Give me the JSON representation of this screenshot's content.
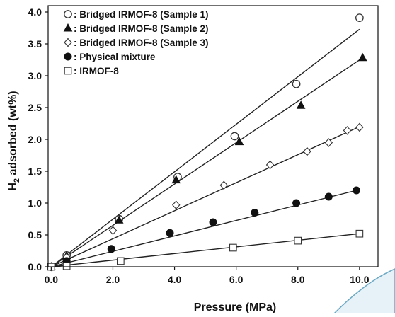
{
  "chart_data": {
    "type": "scatter",
    "title": "",
    "xlabel": "Pressure (MPa)",
    "ylabel_main": "H",
    "ylabel_sub": "2",
    "ylabel_rest": " adsorbed (wt%)",
    "xlim": [
      -0.1,
      10.6
    ],
    "ylim": [
      0.0,
      4.1
    ],
    "xticks": [
      "0.0",
      "2.0",
      "4.0",
      "6.0",
      "8.0",
      "10.0"
    ],
    "yticks": [
      "0.0",
      "0.5",
      "1.0",
      "1.5",
      "2.0",
      "2.5",
      "3.0",
      "3.5",
      "4.0"
    ],
    "grid": false,
    "legend_position": "top-left",
    "series": [
      {
        "name": "Bridged IRMOF-8 (Sample 1)",
        "marker": "open-circle",
        "x": [
          0.0,
          0.5,
          2.2,
          4.1,
          5.95,
          7.95,
          10.0
        ],
        "y": [
          0.0,
          0.18,
          0.75,
          1.41,
          2.05,
          2.87,
          3.91
        ],
        "fit": [
          [
            0.0,
            0.0
          ],
          [
            10.0,
            3.73
          ]
        ]
      },
      {
        "name": "Bridged IRMOF-8 (Sample 2)",
        "marker": "filled-triangle",
        "x": [
          0.0,
          0.5,
          2.2,
          4.05,
          6.1,
          8.1,
          10.1
        ],
        "y": [
          0.0,
          0.17,
          0.73,
          1.36,
          1.96,
          2.53,
          3.28
        ],
        "fit": [
          [
            0.0,
            0.0
          ],
          [
            10.1,
            3.28
          ]
        ]
      },
      {
        "name": "Bridged IRMOF-8 (Sample 3)",
        "marker": "open-diamond",
        "x": [
          0.0,
          0.5,
          2.0,
          4.05,
          5.6,
          7.1,
          8.3,
          9.0,
          9.6,
          10.0
        ],
        "y": [
          0.0,
          0.15,
          0.57,
          0.97,
          1.28,
          1.6,
          1.81,
          1.95,
          2.14,
          2.19
        ],
        "fit": [
          [
            0.0,
            0.0
          ],
          [
            10.0,
            2.2
          ]
        ]
      },
      {
        "name": "Physical mixture",
        "marker": "filled-circle",
        "x": [
          0.0,
          0.5,
          1.95,
          3.85,
          5.25,
          6.6,
          7.95,
          9.0,
          9.9
        ],
        "y": [
          0.0,
          0.09,
          0.28,
          0.53,
          0.7,
          0.85,
          1.0,
          1.1,
          1.2
        ],
        "fit": [
          [
            0.0,
            0.0
          ],
          [
            9.9,
            1.2
          ]
        ]
      },
      {
        "name": "IRMOF-8",
        "marker": "open-square",
        "x": [
          0.0,
          0.5,
          2.25,
          5.9,
          8.0,
          10.0
        ],
        "y": [
          0.0,
          0.01,
          0.09,
          0.3,
          0.41,
          0.52
        ],
        "fit": [
          [
            0.0,
            0.0
          ],
          [
            10.0,
            0.52
          ]
        ]
      }
    ]
  },
  "colors": {
    "ink": "#111111",
    "fit_line": "#222222",
    "marker_edge": "#333333",
    "marker_fill": "#111111",
    "accent_fill": "#e6f2f7",
    "accent_edge": "#6aa8c4"
  }
}
